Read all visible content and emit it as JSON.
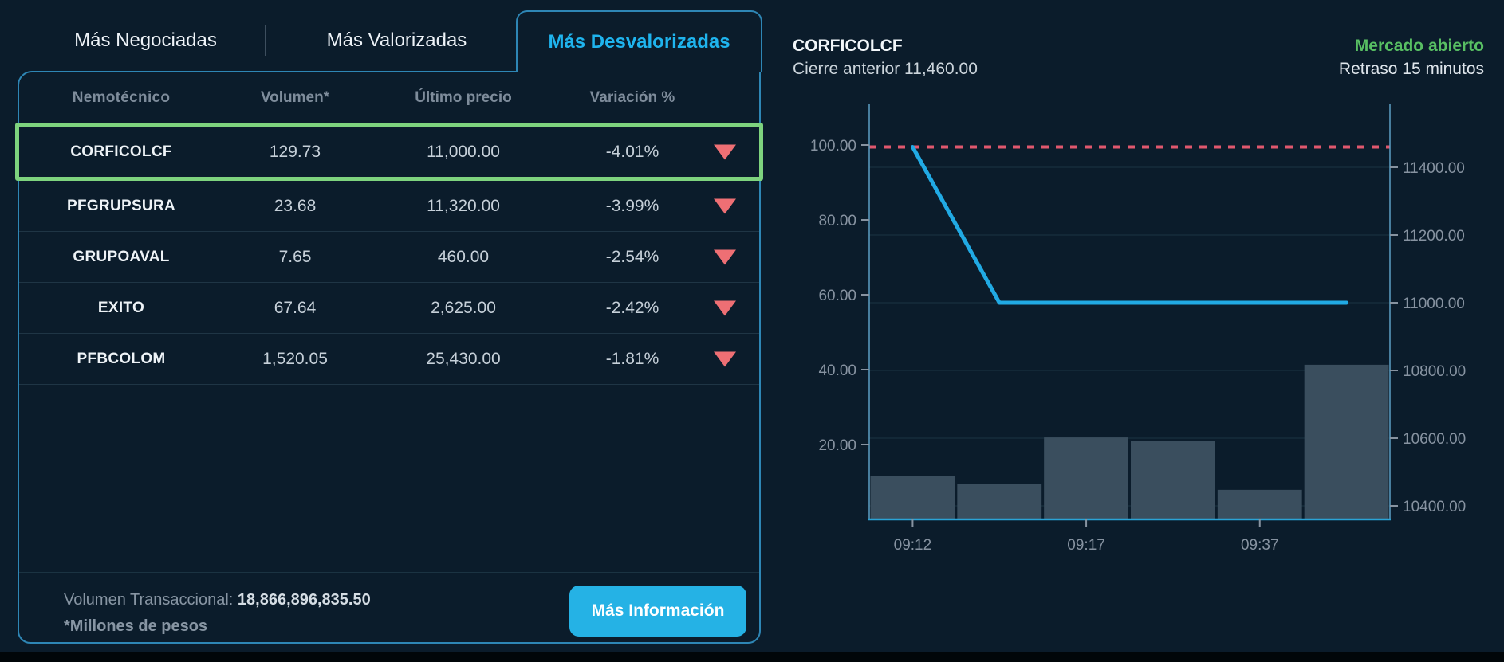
{
  "tabs": {
    "items": [
      {
        "label": "Más Negociadas",
        "active": false
      },
      {
        "label": "Más Valorizadas",
        "active": false
      },
      {
        "label": "Más Desvalorizadas",
        "active": true
      }
    ]
  },
  "table": {
    "columns": [
      "Nemotécnico",
      "Volumen*",
      "Último precio",
      "Variación %"
    ],
    "rows": [
      {
        "symbol": "CORFICOLCF",
        "volume": "129.73",
        "last_price": "11,000.00",
        "variation": "-4.01%",
        "direction": "down",
        "highlighted": true
      },
      {
        "symbol": "PFGRUPSURA",
        "volume": "23.68",
        "last_price": "11,320.00",
        "variation": "-3.99%",
        "direction": "down",
        "highlighted": false
      },
      {
        "symbol": "GRUPOAVAL",
        "volume": "7.65",
        "last_price": "460.00",
        "variation": "-2.54%",
        "direction": "down",
        "highlighted": false
      },
      {
        "symbol": "EXITO",
        "volume": "67.64",
        "last_price": "2,625.00",
        "variation": "-2.42%",
        "direction": "down",
        "highlighted": false
      },
      {
        "symbol": "PFBCOLOM",
        "volume": "1,520.05",
        "last_price": "25,430.00",
        "variation": "-1.81%",
        "direction": "down",
        "highlighted": false
      }
    ],
    "footer": {
      "volume_label": "Volumen Transaccional:",
      "volume_value": "18,866,896,835.50",
      "note": "*Millones de pesos",
      "button_label": "Más Información"
    }
  },
  "quote": {
    "symbol": "CORFICOLCF",
    "previous_close_text": "Cierre anterior 11,460.00",
    "market_status": "Mercado abierto",
    "delay": "Retraso 15 minutos"
  },
  "chart_data": {
    "type": "line",
    "description": "Intraday price line (right axis) with previous-close dashed reference and volume bars (left axis)",
    "x_labels": [
      "09:12",
      "",
      "09:17",
      "",
      "09:37",
      ""
    ],
    "series": [
      {
        "name": "price",
        "type": "line",
        "axis": "right",
        "color": "#21aae4",
        "values": [
          11460,
          11000,
          11000,
          11000,
          11000,
          11000
        ]
      },
      {
        "name": "volume",
        "type": "bar",
        "axis": "left",
        "color": "#3a4e5e",
        "values": [
          11.5,
          9.4,
          21.9,
          20.9,
          7.9,
          41.3
        ]
      },
      {
        "name": "previous-close-reference",
        "type": "dashed-line",
        "axis": "right",
        "color": "#e0586e",
        "value": 11460
      }
    ],
    "left_axis": {
      "ticks": [
        100,
        80,
        60,
        40,
        20
      ],
      "labels": [
        "100.00",
        "80.00",
        "60.00",
        "40.00",
        "20.00"
      ],
      "range": [
        0,
        105.7
      ]
    },
    "right_axis": {
      "ticks": [
        11400,
        11200,
        11000,
        10800,
        10600,
        10400
      ],
      "labels": [
        "11400.00",
        "11200.00",
        "11000.00",
        "10800.00",
        "10600.00",
        "10400.00"
      ],
      "range": [
        10358,
        11532
      ]
    },
    "grid": "horizontal lines at right-axis ticks",
    "legend": "none"
  },
  "colors": {
    "accent_cyan": "#25b2e5",
    "panel_border": "#2e86b5",
    "highlight_green": "#7ed37e",
    "negative_red": "#ee6f74",
    "status_green": "#58bf63",
    "bar_fill": "#3a4e5e",
    "background": "#0b1c2b"
  }
}
